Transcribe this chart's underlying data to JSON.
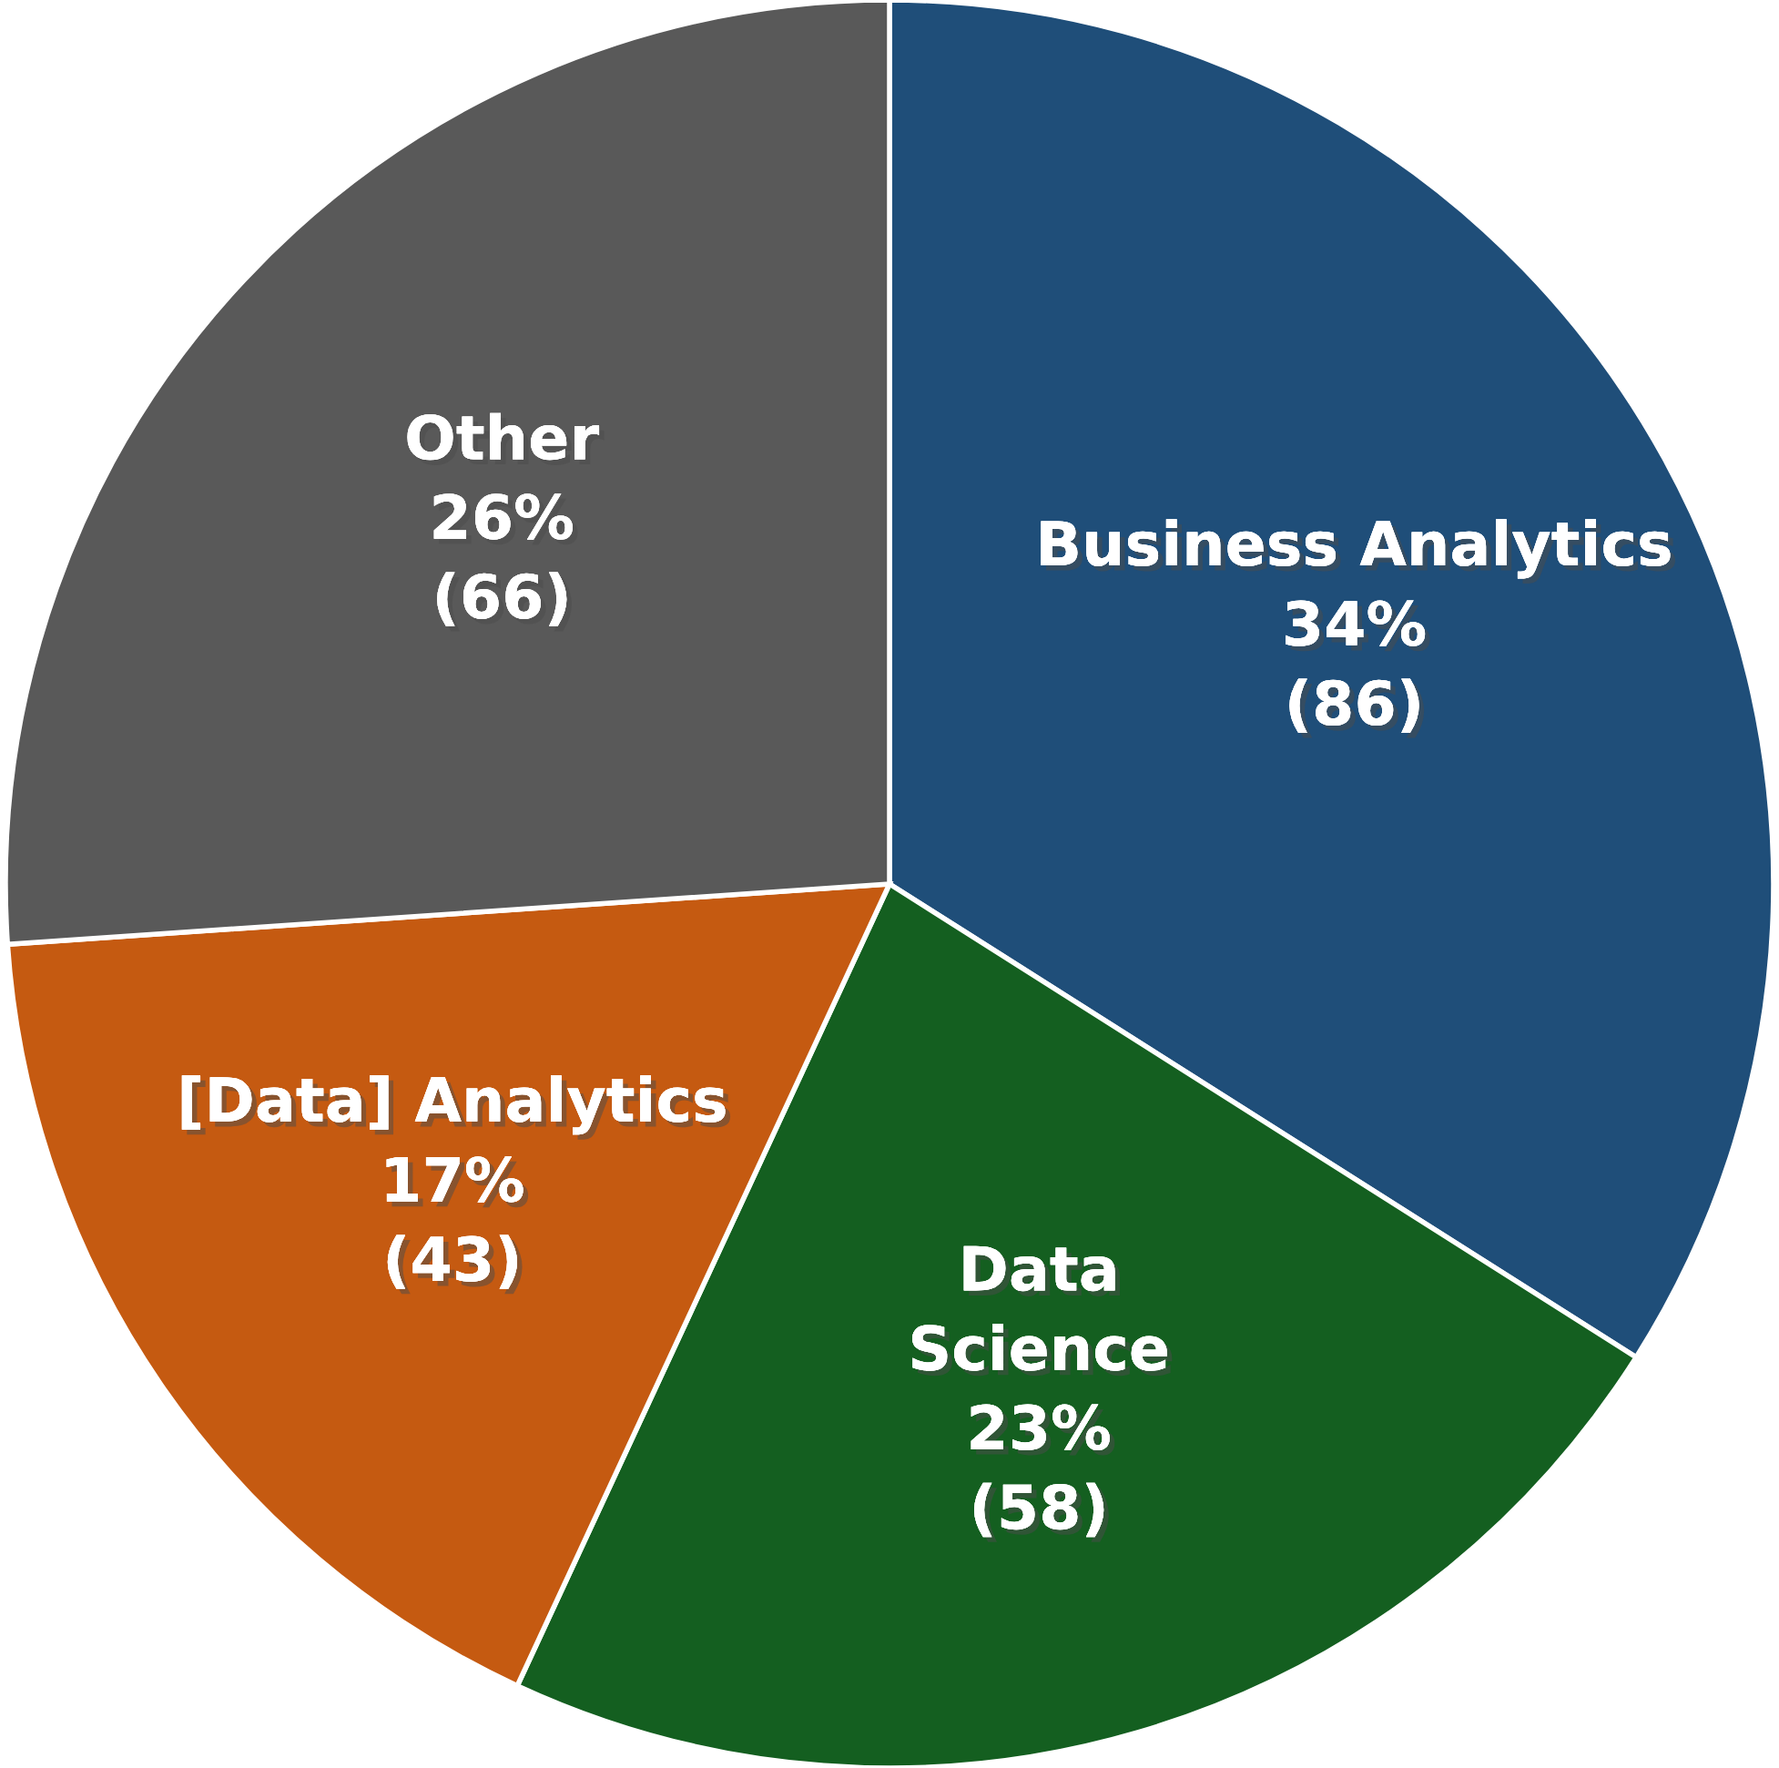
{
  "chart_data": {
    "type": "pie",
    "categories": [
      "Business Analytics",
      "Data\nScience",
      "[Data] Analytics",
      "Other"
    ],
    "values": [
      86,
      58,
      43,
      66
    ],
    "value_labels": [
      "34%\n(86)",
      "23%\n(58)",
      "17%\n(43)",
      "26%\n(66)"
    ],
    "colors": [
      "#1f4e79",
      "#145f20",
      "#c55a11",
      "#595959"
    ]
  }
}
